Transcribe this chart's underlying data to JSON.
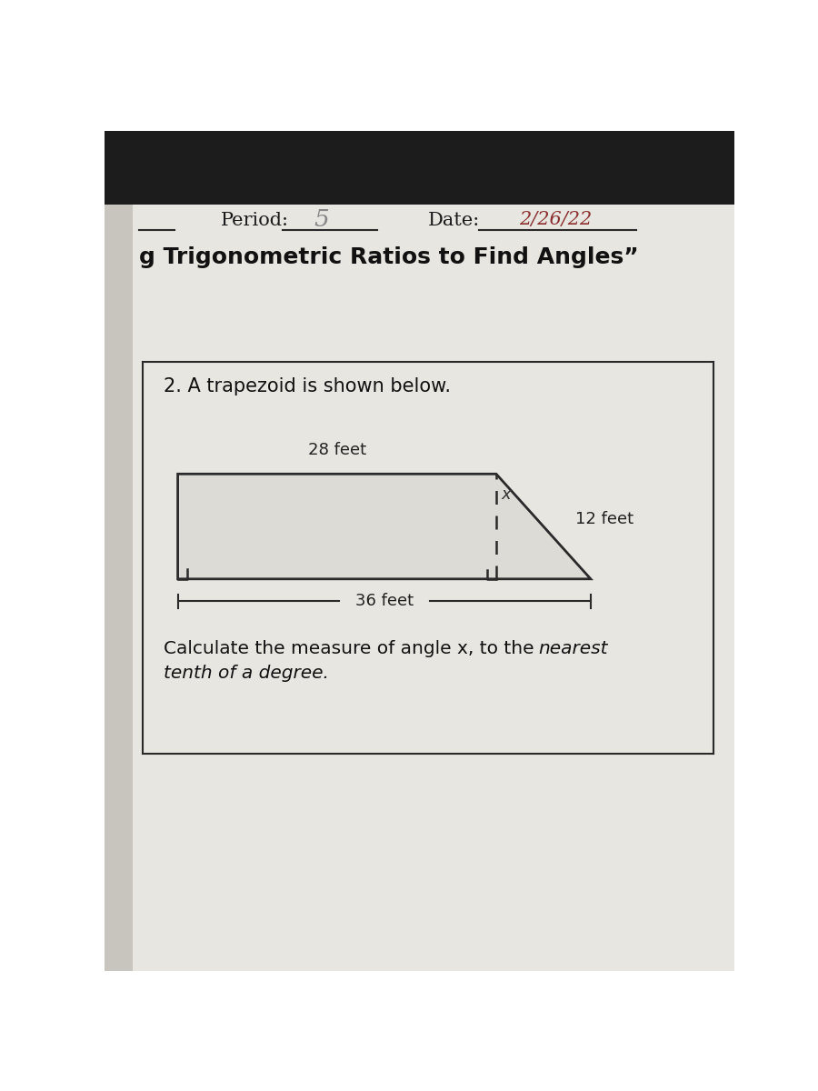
{
  "bg_top_color": "#1c1c1c",
  "bg_paper_color": "#e8e6e0",
  "bg_left_color": "#c8c5be",
  "period_label": "Period:",
  "period_value": "5",
  "date_label": "Date:",
  "date_value": "2/26/22",
  "title_text": "g Trigonometric Ratios to Find Angles”",
  "question_text": "2. A trapezoid is shown below.",
  "top_label": "28 feet",
  "right_label": "12 feet",
  "bottom_label": "36 feet",
  "angle_label": "x",
  "calc_line1": "Calculate the measure of angle x, to the ",
  "calc_line1_italic": "nearest",
  "calc_line2_italic": "tenth of a degree.",
  "trapezoid_fill": "#e8e6e0",
  "line_color": "#2a2a2a",
  "box_color": "#2a2a2a"
}
